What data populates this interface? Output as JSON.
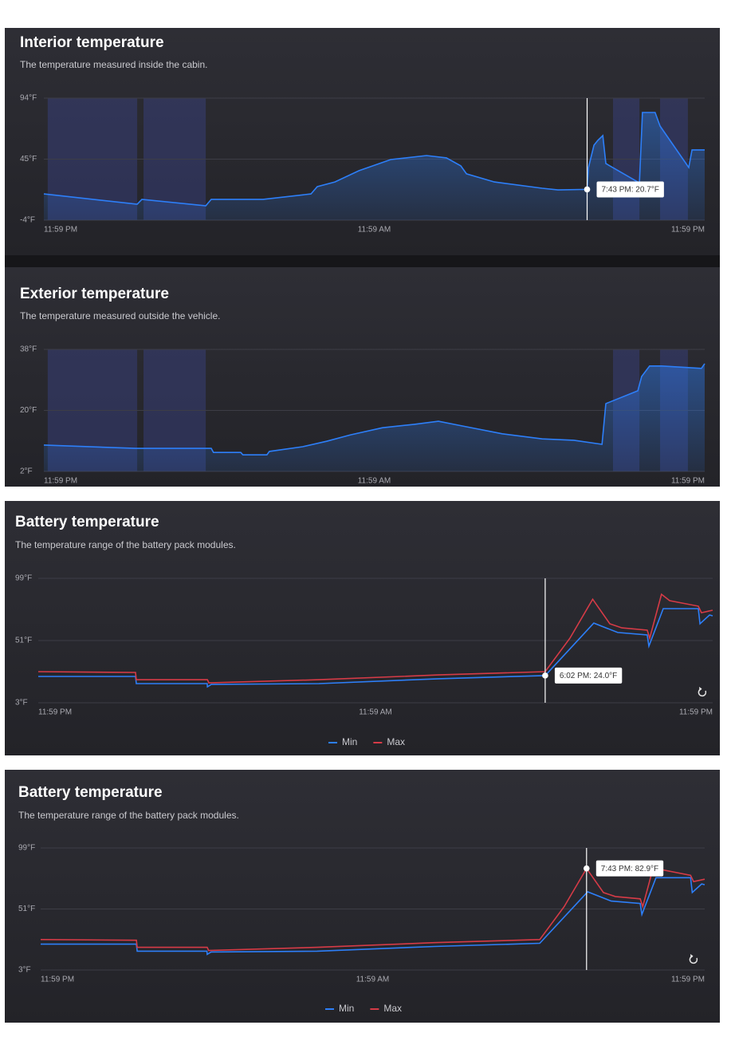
{
  "chart_data": [
    {
      "type": "area",
      "title": "Interior temperature",
      "subtitle": "The temperature measured inside the cabin.",
      "x": [
        0,
        3.39,
        3.56,
        5.88,
        6.08,
        7.96,
        9.7,
        9.93,
        10.57,
        11.44,
        12.6,
        13.9,
        14.62,
        15.14,
        15.35,
        16.36,
        18.1,
        18.67,
        19.73,
        19.78,
        19.98,
        20.12,
        20.3,
        20.41,
        21.57,
        21.63,
        21.74,
        22.2,
        22.38,
        23.42,
        23.54,
        24
      ],
      "values": [
        17.1,
        8.8,
        12.7,
        7.5,
        12.7,
        12.7,
        17.1,
        22.9,
        26.7,
        35.7,
        44.7,
        47.9,
        46,
        39.6,
        33.2,
        26.7,
        21.6,
        20.3,
        20.7,
        38.3,
        56.2,
        60.1,
        63.9,
        41.5,
        26.7,
        25.5,
        82.5,
        82.5,
        71.6,
        38.3,
        52.4,
        52.4
      ],
      "color": "#2d7ff9",
      "bands": [
        {
          "start": 0.14,
          "end": 3.39
        },
        {
          "start": 3.62,
          "end": 5.88
        },
        {
          "start": 20.67,
          "end": 21.63
        },
        {
          "start": 22.38,
          "end": 23.39
        }
      ],
      "band_color": "rgba(62,74,160,0.35)",
      "xlim": [
        0,
        24
      ],
      "xticks": [
        {
          "value": 0,
          "label": "11:59 PM"
        },
        {
          "value": 12,
          "label": "11:59 AM"
        },
        {
          "value": 24,
          "label": "11:59 PM"
        }
      ],
      "ylim": [
        -4,
        94
      ],
      "yticks": [
        {
          "value": 94,
          "label": "94°F"
        },
        {
          "value": 45,
          "label": "45°F"
        },
        {
          "value": -4,
          "label": "-4°F"
        }
      ],
      "grid": true,
      "tooltip": {
        "x": 19.73,
        "y": 20.7,
        "label": "7:43 PM: 20.7°F"
      }
    },
    {
      "type": "area",
      "title": "Exterior temperature",
      "subtitle": "The temperature measured outside the vehicle.",
      "x": [
        0,
        3.33,
        6.08,
        6.16,
        7.15,
        7.23,
        8.1,
        8.19,
        9.4,
        10.27,
        11.14,
        12.3,
        13.46,
        14.33,
        15.2,
        16.65,
        18.1,
        19.25,
        20.27,
        20.41,
        21.57,
        21.71,
        22,
        22.44,
        23.88,
        24
      ],
      "values": [
        9.8,
        8.8,
        8.8,
        7.6,
        7.6,
        6.9,
        6.9,
        7.9,
        9.3,
        10.9,
        12.8,
        14.9,
        15.9,
        16.8,
        15.4,
        13.1,
        11.6,
        11.2,
        10,
        22,
        25.8,
        30,
        33.1,
        33.1,
        32.4,
        33.8
      ],
      "color": "#2d7ff9",
      "bands": [
        {
          "start": 0.14,
          "end": 3.39
        },
        {
          "start": 3.62,
          "end": 5.88
        },
        {
          "start": 20.67,
          "end": 21.63
        },
        {
          "start": 22.38,
          "end": 23.39
        }
      ],
      "band_color": "rgba(62,74,160,0.35)",
      "xlim": [
        0,
        24
      ],
      "xticks": [
        {
          "value": 0,
          "label": "11:59 PM"
        },
        {
          "value": 12,
          "label": "11:59 AM"
        },
        {
          "value": 24,
          "label": "11:59 PM"
        }
      ],
      "ylim": [
        2,
        38
      ],
      "yticks": [
        {
          "value": 38,
          "label": "38°F"
        },
        {
          "value": 20,
          "label": "20°F"
        },
        {
          "value": 2,
          "label": "2°F"
        }
      ],
      "grid": true
    },
    {
      "type": "line",
      "title": "Battery temperature",
      "subtitle": "The temperature range of the battery pack modules.",
      "series": [
        {
          "name": "Min",
          "color": "#2d7ff9",
          "x": [
            0,
            3.46,
            3.49,
            6.01,
            6.02,
            6.16,
            9.99,
            14.24,
            18.04,
            19.77,
            20.62,
            21.67,
            21.73,
            22.24,
            23.49,
            23.55,
            23.89,
            24
          ],
          "values": [
            23.3,
            23.3,
            17.8,
            17.8,
            15.3,
            17.2,
            17.8,
            21.5,
            24,
            64.5,
            57.2,
            55.3,
            46.7,
            75.6,
            75.6,
            63.9,
            70.7,
            70.1
          ]
        },
        {
          "name": "Max",
          "color": "#d63b47",
          "x": [
            0,
            3.46,
            3.49,
            6.02,
            6.07,
            9.99,
            14.24,
            18.04,
            18.92,
            19.73,
            20.34,
            20.77,
            21.67,
            21.76,
            22.18,
            22.47,
            23.49,
            23.6,
            24
          ],
          "values": [
            27,
            26.4,
            20.8,
            20.8,
            18.4,
            20.8,
            24.5,
            27,
            52.8,
            82.9,
            63.9,
            60.8,
            59,
            52.8,
            86.7,
            81.8,
            77.5,
            72.5,
            74.4
          ]
        }
      ],
      "xlim": [
        0,
        24
      ],
      "xticks": [
        {
          "value": 0,
          "label": "11:59 PM"
        },
        {
          "value": 12,
          "label": "11:59 AM"
        },
        {
          "value": 24,
          "label": "11:59 PM"
        }
      ],
      "ylim": [
        3,
        99
      ],
      "yticks": [
        {
          "value": 99,
          "label": "99°F"
        },
        {
          "value": 51,
          "label": "51°F"
        },
        {
          "value": 3,
          "label": "3°F"
        }
      ],
      "grid": true,
      "tooltip": {
        "x": 18.04,
        "y": 24,
        "label": "6:02 PM: 24.0°F"
      }
    },
    {
      "type": "line",
      "title": "Battery temperature",
      "subtitle": "The temperature range of the battery pack modules.",
      "series": [
        {
          "name": "Min",
          "color": "#2d7ff9",
          "x": [
            0,
            3.46,
            3.49,
            6.01,
            6.02,
            6.16,
            9.99,
            14.24,
            18.04,
            19.77,
            20.62,
            21.67,
            21.73,
            22.24,
            23.49,
            23.55,
            23.89,
            24
          ],
          "values": [
            23.3,
            23.3,
            17.8,
            17.8,
            15.3,
            17.2,
            17.8,
            21.5,
            24,
            64.5,
            57.2,
            55.3,
            46.7,
            75.6,
            75.6,
            63.9,
            70.7,
            70.1
          ]
        },
        {
          "name": "Max",
          "color": "#d63b47",
          "x": [
            0,
            3.46,
            3.49,
            6.02,
            6.07,
            9.99,
            14.24,
            18.04,
            18.92,
            19.73,
            20.34,
            20.77,
            21.67,
            21.76,
            22.18,
            22.47,
            23.49,
            23.6,
            24
          ],
          "values": [
            27,
            26.4,
            20.8,
            20.8,
            18.4,
            20.8,
            24.5,
            27,
            52.8,
            82.9,
            63.9,
            60.8,
            59,
            52.8,
            86.7,
            81.8,
            77.5,
            72.5,
            74.4
          ]
        }
      ],
      "xlim": [
        0,
        24
      ],
      "xticks": [
        {
          "value": 0,
          "label": "11:59 PM"
        },
        {
          "value": 12,
          "label": "11:59 AM"
        },
        {
          "value": 24,
          "label": "11:59 PM"
        }
      ],
      "ylim": [
        3,
        99
      ],
      "yticks": [
        {
          "value": 99,
          "label": "99°F"
        },
        {
          "value": 51,
          "label": "51°F"
        },
        {
          "value": 3,
          "label": "3°F"
        }
      ],
      "grid": true,
      "tooltip": {
        "x": 19.73,
        "y": 82.9,
        "label": "7:43 PM: 82.9°F"
      }
    }
  ]
}
